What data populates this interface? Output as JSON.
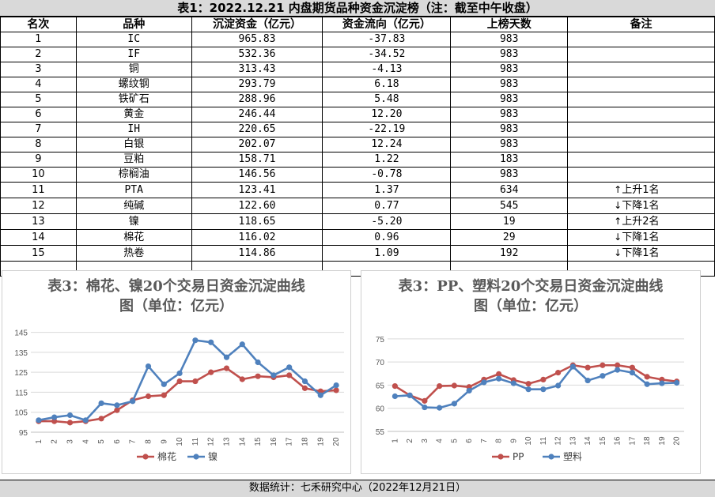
{
  "title": "表1：2022.12.21 内盘期货品种资金沉淀榜（注：截至中午收盘）",
  "table": {
    "headers": [
      "名次",
      "品种",
      "沉淀资金（亿元）",
      "资金流向（亿元）",
      "上榜天数",
      "备注"
    ],
    "rows": [
      {
        "rank": "1",
        "name": "IC",
        "amount": "965.83",
        "flow": "-37.83",
        "days": "983",
        "note": "",
        "dir": ""
      },
      {
        "rank": "2",
        "name": "IF",
        "amount": "532.36",
        "flow": "-34.52",
        "days": "983",
        "note": "",
        "dir": ""
      },
      {
        "rank": "3",
        "name": "铜",
        "amount": "313.43",
        "flow": "-4.13",
        "days": "983",
        "note": "",
        "dir": ""
      },
      {
        "rank": "4",
        "name": "螺纹钢",
        "amount": "293.79",
        "flow": "6.18",
        "days": "983",
        "note": "",
        "dir": ""
      },
      {
        "rank": "5",
        "name": "铁矿石",
        "amount": "288.96",
        "flow": "5.48",
        "days": "983",
        "note": "",
        "dir": ""
      },
      {
        "rank": "6",
        "name": "黄金",
        "amount": "246.44",
        "flow": "12.20",
        "days": "983",
        "note": "",
        "dir": ""
      },
      {
        "rank": "7",
        "name": "IH",
        "amount": "220.65",
        "flow": "-22.19",
        "days": "983",
        "note": "",
        "dir": ""
      },
      {
        "rank": "8",
        "name": "白银",
        "amount": "202.07",
        "flow": "12.24",
        "days": "983",
        "note": "",
        "dir": ""
      },
      {
        "rank": "9",
        "name": "豆粕",
        "amount": "158.71",
        "flow": "1.22",
        "days": "183",
        "note": "",
        "dir": ""
      },
      {
        "rank": "10",
        "name": "棕榈油",
        "amount": "146.56",
        "flow": "-0.78",
        "days": "983",
        "note": "",
        "dir": ""
      },
      {
        "rank": "11",
        "name": "PTA",
        "amount": "123.41",
        "flow": "1.37",
        "days": "634",
        "note": "上升1名",
        "dir": "↑"
      },
      {
        "rank": "12",
        "name": "纯碱",
        "amount": "122.60",
        "flow": "0.77",
        "days": "545",
        "note": "下降1名",
        "dir": "↓"
      },
      {
        "rank": "13",
        "name": "镍",
        "amount": "118.65",
        "flow": "-5.20",
        "days": "19",
        "note": "上升2名",
        "dir": "↑"
      },
      {
        "rank": "14",
        "name": "棉花",
        "amount": "116.02",
        "flow": "0.96",
        "days": "29",
        "note": "下降1名",
        "dir": "↓"
      },
      {
        "rank": "15",
        "name": "热卷",
        "amount": "114.86",
        "flow": "1.09",
        "days": "192",
        "note": "下降1名",
        "dir": "↓"
      }
    ]
  },
  "chart_data": [
    {
      "type": "line",
      "title": "表3：棉花、镍20个交易日资金沉淀曲线图（单位：亿元）",
      "title_lines": [
        "表3：棉花、镍20个交易日资金沉淀曲线",
        "图（单位：亿元）"
      ],
      "categories": [
        "1",
        "2",
        "3",
        "4",
        "5",
        "6",
        "7",
        "8",
        "9",
        "10",
        "11",
        "12",
        "13",
        "14",
        "15",
        "16",
        "17",
        "18",
        "19",
        "20"
      ],
      "yticks": [
        95,
        105,
        115,
        125,
        135,
        145
      ],
      "ylim": [
        95,
        148
      ],
      "grid": true,
      "legend": "bottom",
      "series": [
        {
          "name": "棉花",
          "color": "#c0504d",
          "values": [
            100.5,
            100.5,
            99.8,
            100.5,
            101.8,
            106,
            111,
            113,
            113.5,
            120.5,
            120.5,
            125,
            127,
            121.5,
            123,
            122.5,
            123.5,
            117,
            115.5,
            116
          ]
        },
        {
          "name": "镍",
          "color": "#4f81bd",
          "values": [
            101,
            102.5,
            103.5,
            101,
            109.5,
            108.5,
            110.5,
            128,
            119,
            124.5,
            141,
            140,
            132.5,
            139,
            130,
            123.5,
            127.5,
            120.5,
            113.5,
            118.5
          ]
        }
      ]
    },
    {
      "type": "line",
      "title": "表3：PP、塑料20个交易日资金沉淀曲线图（单位：亿元）",
      "title_lines": [
        "表3：PP、塑料20个交易日资金沉淀曲线",
        "图（单位：亿元）"
      ],
      "categories": [
        "1",
        "2",
        "3",
        "4",
        "5",
        "6",
        "7",
        "8",
        "9",
        "10",
        "11",
        "12",
        "13",
        "14",
        "15",
        "16",
        "17",
        "18",
        "19",
        "20"
      ],
      "yticks": [
        55,
        60,
        65,
        70,
        75
      ],
      "ylim": [
        55,
        76
      ],
      "grid": true,
      "legend": "bottom",
      "series": [
        {
          "name": "PP",
          "color": "#c0504d",
          "values": [
            64.8,
            62.8,
            61.6,
            64.8,
            64.9,
            64.6,
            66.2,
            67.4,
            66.1,
            65.3,
            66.2,
            67.7,
            69.3,
            68.8,
            69.3,
            69.3,
            68.8,
            66.8,
            66.2,
            65.8
          ]
        },
        {
          "name": "塑料",
          "color": "#4f81bd",
          "values": [
            62.6,
            62.8,
            60.2,
            60.1,
            61.0,
            63.8,
            65.6,
            66.4,
            65.4,
            64.1,
            64.1,
            64.9,
            69.0,
            66.0,
            67.0,
            68.3,
            67.7,
            65.2,
            65.4,
            65.5
          ]
        }
      ]
    }
  ],
  "footer": "数据统计：七禾研究中心（2022年12月21日）"
}
